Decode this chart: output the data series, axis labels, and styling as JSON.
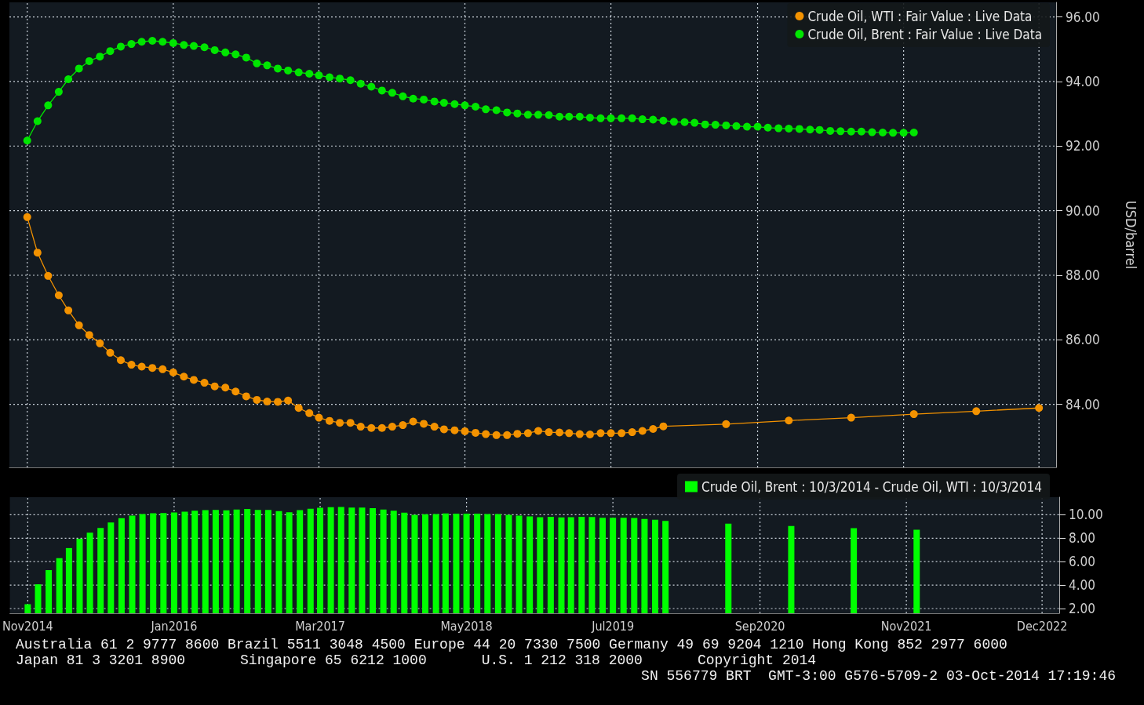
{
  "chart_data": [
    {
      "type": "line",
      "ylabel": "USD/barrel",
      "xlim": [
        "2014-09-10",
        "2023-01-20"
      ],
      "xticks": [
        {
          "value": "2014-11",
          "label": null
        },
        {
          "value": "2016-01",
          "label": null
        },
        {
          "value": "2017-03",
          "label": null
        },
        {
          "value": "2018-05",
          "label": null
        },
        {
          "value": "2019-07",
          "label": null
        },
        {
          "value": "2020-09",
          "label": null
        },
        {
          "value": "2021-11",
          "label": null
        },
        {
          "value": "2022-12",
          "label": null
        }
      ],
      "ylim": [
        82.05,
        96.45
      ],
      "yticks": [
        {
          "value": 84,
          "label": "84.00"
        },
        {
          "value": 86,
          "label": "86.00"
        },
        {
          "value": 88,
          "label": "88.00"
        },
        {
          "value": 90,
          "label": "90.00"
        },
        {
          "value": 92,
          "label": "92.00"
        },
        {
          "value": 94,
          "label": "94.00"
        },
        {
          "value": 96,
          "label": "96.00"
        }
      ],
      "tick_labels": "y",
      "grid": true,
      "legend": "top right",
      "marker": "circle",
      "series": [
        {
          "name": "Crude Oil, WTI : Fair Value : Live Data",
          "color": "#f39200",
          "x": [
            "2014-11",
            "2014-12",
            "2015-01",
            "2015-02",
            "2015-03",
            "2015-04",
            "2015-05",
            "2015-06",
            "2015-07",
            "2015-08",
            "2015-09",
            "2015-10",
            "2015-11",
            "2015-12",
            "2016-01",
            "2016-02",
            "2016-03",
            "2016-04",
            "2016-05",
            "2016-06",
            "2016-07",
            "2016-08",
            "2016-09",
            "2016-10",
            "2016-11",
            "2016-12",
            "2017-01",
            "2017-02",
            "2017-03",
            "2017-04",
            "2017-05",
            "2017-06",
            "2017-07",
            "2017-08",
            "2017-09",
            "2017-10",
            "2017-11",
            "2017-12",
            "2018-01",
            "2018-02",
            "2018-03",
            "2018-04",
            "2018-05",
            "2018-06",
            "2018-07",
            "2018-08",
            "2018-09",
            "2018-10",
            "2018-11",
            "2018-12",
            "2019-01",
            "2019-02",
            "2019-03",
            "2019-04",
            "2019-05",
            "2019-06",
            "2019-07",
            "2019-08",
            "2019-09",
            "2019-10",
            "2019-11",
            "2019-12",
            "2020-06",
            "2020-12",
            "2021-06",
            "2021-12",
            "2022-06",
            "2022-12"
          ],
          "values": [
            89.8,
            88.7,
            87.98,
            87.38,
            86.91,
            86.45,
            86.15,
            85.89,
            85.6,
            85.37,
            85.23,
            85.17,
            85.13,
            85.09,
            84.99,
            84.86,
            84.76,
            84.67,
            84.56,
            84.52,
            84.4,
            84.25,
            84.14,
            84.09,
            84.08,
            84.12,
            83.89,
            83.73,
            83.59,
            83.49,
            83.43,
            83.43,
            83.31,
            83.27,
            83.27,
            83.31,
            83.36,
            83.47,
            83.4,
            83.31,
            83.23,
            83.2,
            83.17,
            83.12,
            83.08,
            83.05,
            83.05,
            83.09,
            83.11,
            83.18,
            83.14,
            83.13,
            83.11,
            83.08,
            83.07,
            83.11,
            83.11,
            83.11,
            83.14,
            83.18,
            83.24,
            83.32,
            83.39,
            83.5,
            83.59,
            83.7,
            83.79,
            83.89
          ]
        },
        {
          "name": "Crude Oil, Brent : Fair Value : Live Data",
          "color": "#00e600",
          "x": [
            "2014-11",
            "2014-12",
            "2015-01",
            "2015-02",
            "2015-03",
            "2015-04",
            "2015-05",
            "2015-06",
            "2015-07",
            "2015-08",
            "2015-09",
            "2015-10",
            "2015-11",
            "2015-12",
            "2016-01",
            "2016-02",
            "2016-03",
            "2016-04",
            "2016-05",
            "2016-06",
            "2016-07",
            "2016-08",
            "2016-09",
            "2016-10",
            "2016-11",
            "2016-12",
            "2017-01",
            "2017-02",
            "2017-03",
            "2017-04",
            "2017-05",
            "2017-06",
            "2017-07",
            "2017-08",
            "2017-09",
            "2017-10",
            "2017-11",
            "2017-12",
            "2018-01",
            "2018-02",
            "2018-03",
            "2018-04",
            "2018-05",
            "2018-06",
            "2018-07",
            "2018-08",
            "2018-09",
            "2018-10",
            "2018-11",
            "2018-12",
            "2019-01",
            "2019-02",
            "2019-03",
            "2019-04",
            "2019-05",
            "2019-06",
            "2019-07",
            "2019-08",
            "2019-09",
            "2019-10",
            "2019-11",
            "2019-12",
            "2020-01",
            "2020-02",
            "2020-03",
            "2020-04",
            "2020-05",
            "2020-06",
            "2020-07",
            "2020-08",
            "2020-09",
            "2020-10",
            "2020-11",
            "2020-12",
            "2021-01",
            "2021-02",
            "2021-03",
            "2021-04",
            "2021-05",
            "2021-06",
            "2021-07",
            "2021-08",
            "2021-09",
            "2021-10",
            "2021-11",
            "2021-12"
          ],
          "values": [
            92.17,
            92.77,
            93.26,
            93.68,
            94.07,
            94.4,
            94.63,
            94.77,
            94.94,
            95.08,
            95.16,
            95.23,
            95.26,
            95.23,
            95.19,
            95.13,
            95.1,
            95.06,
            94.97,
            94.9,
            94.84,
            94.74,
            94.56,
            94.5,
            94.4,
            94.34,
            94.28,
            94.24,
            94.19,
            94.13,
            94.09,
            94.04,
            93.93,
            93.84,
            93.72,
            93.65,
            93.54,
            93.47,
            93.44,
            93.38,
            93.34,
            93.3,
            93.26,
            93.22,
            93.14,
            93.11,
            93.04,
            93.01,
            92.97,
            92.97,
            92.96,
            92.91,
            92.91,
            92.91,
            92.88,
            92.86,
            92.86,
            92.86,
            92.86,
            92.83,
            92.82,
            92.79,
            92.75,
            92.74,
            92.72,
            92.67,
            92.66,
            92.64,
            92.62,
            92.6,
            92.6,
            92.57,
            92.55,
            92.54,
            92.53,
            92.51,
            92.5,
            92.47,
            92.46,
            92.45,
            92.45,
            92.43,
            92.42,
            92.41,
            92.41,
            92.42
          ]
        }
      ]
    },
    {
      "type": "bar",
      "xlim": [
        "2014-09-10",
        "2023-01-20"
      ],
      "xticks": [
        {
          "value": "2014-11",
          "label": "Nov2014"
        },
        {
          "value": "2016-01",
          "label": "Jan2016"
        },
        {
          "value": "2017-03",
          "label": "Mar2017"
        },
        {
          "value": "2018-05",
          "label": "May2018"
        },
        {
          "value": "2019-07",
          "label": "Jul2019"
        },
        {
          "value": "2020-09",
          "label": "Sep2020"
        },
        {
          "value": "2021-11",
          "label": "Nov2021"
        },
        {
          "value": "2022-12",
          "label": "Dec2022"
        }
      ],
      "ylim": [
        1.6,
        11.5
      ],
      "yticks": [
        {
          "value": 2,
          "label": "2.00"
        },
        {
          "value": 4,
          "label": "4.00"
        },
        {
          "value": 6,
          "label": "6.00"
        },
        {
          "value": 8,
          "label": "8.00"
        },
        {
          "value": 10,
          "label": "10.00"
        }
      ],
      "grid": true,
      "legend": "top right",
      "series": [
        {
          "name": "Crude Oil, Brent : 10/3/2014 - Crude Oil, WTI : 10/3/2014",
          "color": "#00ff00",
          "x": [
            "2014-11",
            "2014-12",
            "2015-01",
            "2015-02",
            "2015-03",
            "2015-04",
            "2015-05",
            "2015-06",
            "2015-07",
            "2015-08",
            "2015-09",
            "2015-10",
            "2015-11",
            "2015-12",
            "2016-01",
            "2016-02",
            "2016-03",
            "2016-04",
            "2016-05",
            "2016-06",
            "2016-07",
            "2016-08",
            "2016-09",
            "2016-10",
            "2016-11",
            "2016-12",
            "2017-01",
            "2017-02",
            "2017-03",
            "2017-04",
            "2017-05",
            "2017-06",
            "2017-07",
            "2017-08",
            "2017-09",
            "2017-10",
            "2017-11",
            "2017-12",
            "2018-01",
            "2018-02",
            "2018-03",
            "2018-04",
            "2018-05",
            "2018-06",
            "2018-07",
            "2018-08",
            "2018-09",
            "2018-10",
            "2018-11",
            "2018-12",
            "2019-01",
            "2019-02",
            "2019-03",
            "2019-04",
            "2019-05",
            "2019-06",
            "2019-07",
            "2019-08",
            "2019-09",
            "2019-10",
            "2019-11",
            "2019-12",
            "2020-06",
            "2020-12",
            "2021-06",
            "2021-12"
          ],
          "values": [
            2.37,
            4.07,
            5.28,
            6.3,
            7.16,
            7.95,
            8.48,
            8.88,
            9.34,
            9.71,
            9.93,
            10.06,
            10.13,
            10.14,
            10.2,
            10.27,
            10.34,
            10.39,
            10.41,
            10.38,
            10.44,
            10.49,
            10.42,
            10.41,
            10.32,
            10.22,
            10.39,
            10.51,
            10.6,
            10.64,
            10.66,
            10.61,
            10.62,
            10.57,
            10.45,
            10.34,
            10.18,
            10.0,
            10.04,
            10.07,
            10.11,
            10.1,
            10.09,
            10.1,
            10.06,
            10.06,
            9.99,
            9.92,
            9.86,
            9.79,
            9.82,
            9.78,
            9.8,
            9.83,
            9.81,
            9.75,
            9.75,
            9.75,
            9.72,
            9.65,
            9.58,
            9.47,
            9.25,
            9.04,
            8.86,
            8.72
          ]
        }
      ],
      "annotations": [
        "Australia 61 2 9777 8600 Brazil 5511 3048 4500 Europe 44 20 7330 7500 Germany 49 69 9204 1210 Hong Kong 852 2977 6000",
        "Japan 81 3 3201 8900",
        "Singapore 65 6212 1000",
        "U.S. 1 212 318 2000",
        "Copyright 2014",
        "SN 556779 BRT  GMT-3:00 G576-5709-2 03-Oct-2014 17:19:46"
      ]
    }
  ]
}
